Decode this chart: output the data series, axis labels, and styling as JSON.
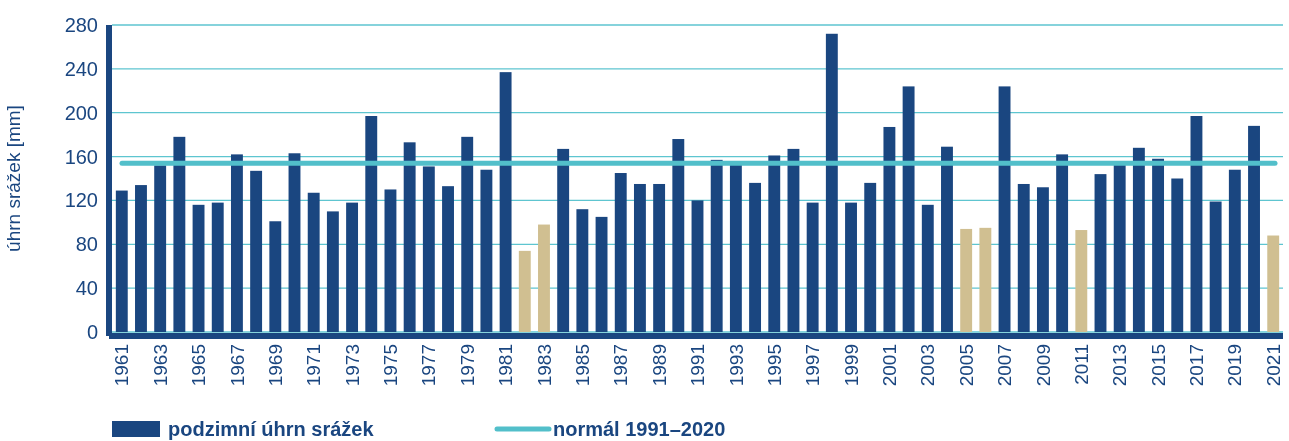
{
  "chart_data": {
    "type": "bar",
    "ylabel": "úhrn srážek [mm]",
    "ylim": [
      0,
      280
    ],
    "yticks": [
      0,
      40,
      80,
      120,
      160,
      200,
      240,
      280
    ],
    "grid": "y",
    "legend": "bottom left",
    "categories": [
      "1961",
      null,
      "1963",
      null,
      "1965",
      null,
      "1967",
      null,
      "1969",
      null,
      "1971",
      null,
      "1973",
      null,
      "1975",
      null,
      "1977",
      null,
      "1979",
      null,
      "1981",
      null,
      "1983",
      null,
      "1985",
      null,
      "1987",
      null,
      "1989",
      null,
      "1991",
      null,
      "1993",
      null,
      "1995",
      null,
      "1997",
      null,
      "1999",
      null,
      "2001",
      null,
      "2003",
      null,
      "2005",
      null,
      "2007",
      null,
      "2009",
      null,
      "2011",
      null,
      "2013",
      null,
      "2015",
      null,
      "2017",
      null,
      "2019",
      null,
      "2021"
    ],
    "series": [
      {
        "name": "podzimní úhrn srážek",
        "color": "#1a4680",
        "values": [
          129,
          134,
          152,
          178,
          116,
          118,
          162,
          147,
          101,
          163,
          127,
          110,
          118,
          197,
          130,
          173,
          151,
          133,
          178,
          148,
          237,
          74,
          98,
          167,
          112,
          105,
          145,
          135,
          135,
          176,
          120,
          157,
          153,
          136,
          161,
          167,
          118,
          272,
          118,
          136,
          187,
          224,
          116,
          169,
          94,
          95,
          224,
          135,
          132,
          162,
          93,
          144,
          153,
          168,
          158,
          140,
          197,
          119,
          148,
          188,
          88
        ],
        "colors": [
          "#1a4680",
          "#1a4680",
          "#1a4680",
          "#1a4680",
          "#1a4680",
          "#1a4680",
          "#1a4680",
          "#1a4680",
          "#1a4680",
          "#1a4680",
          "#1a4680",
          "#1a4680",
          "#1a4680",
          "#1a4680",
          "#1a4680",
          "#1a4680",
          "#1a4680",
          "#1a4680",
          "#1a4680",
          "#1a4680",
          "#1a4680",
          "#d0bf91",
          "#d0bf91",
          "#1a4680",
          "#1a4680",
          "#1a4680",
          "#1a4680",
          "#1a4680",
          "#1a4680",
          "#1a4680",
          "#1a4680",
          "#1a4680",
          "#1a4680",
          "#1a4680",
          "#1a4680",
          "#1a4680",
          "#1a4680",
          "#1a4680",
          "#1a4680",
          "#1a4680",
          "#1a4680",
          "#1a4680",
          "#1a4680",
          "#1a4680",
          "#d0bf91",
          "#d0bf91",
          "#1a4680",
          "#1a4680",
          "#1a4680",
          "#1a4680",
          "#d0bf91",
          "#1a4680",
          "#1a4680",
          "#1a4680",
          "#1a4680",
          "#1a4680",
          "#1a4680",
          "#1a4680",
          "#1a4680",
          "#1a4680",
          "#d0bf91"
        ]
      }
    ],
    "ref_lines": [
      {
        "axis": "y",
        "value": 154,
        "label": "normál 1991–2020",
        "color": "#52bfca"
      }
    ]
  }
}
